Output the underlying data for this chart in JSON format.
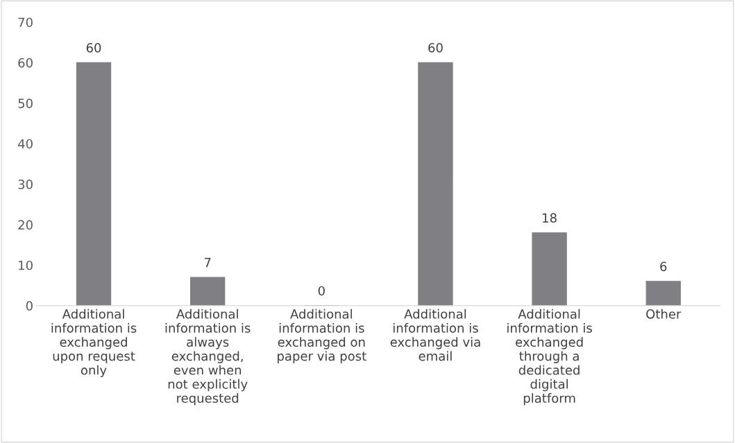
{
  "chart_data": {
    "type": "bar",
    "categories": [
      "Additional\ninformation is\nexchanged\nupon request\nonly",
      "Additional\ninformation is\nalways\nexchanged,\neven when\nnot explicitly\nrequested",
      "Additional\ninformation is\nexchanged on\npaper via post",
      "Additional\ninformation is\nexchanged via\nemail",
      "Additional\ninformation is\nexchanged\nthrough a\ndedicated\ndigital\nplatform",
      "Other"
    ],
    "values": [
      60,
      7,
      0,
      60,
      18,
      6
    ],
    "color": "#808084",
    "ylim": [
      0,
      70
    ],
    "yticks": [
      0,
      10,
      20,
      30,
      40,
      50,
      60,
      70
    ],
    "data_labels": true,
    "grid": false
  }
}
